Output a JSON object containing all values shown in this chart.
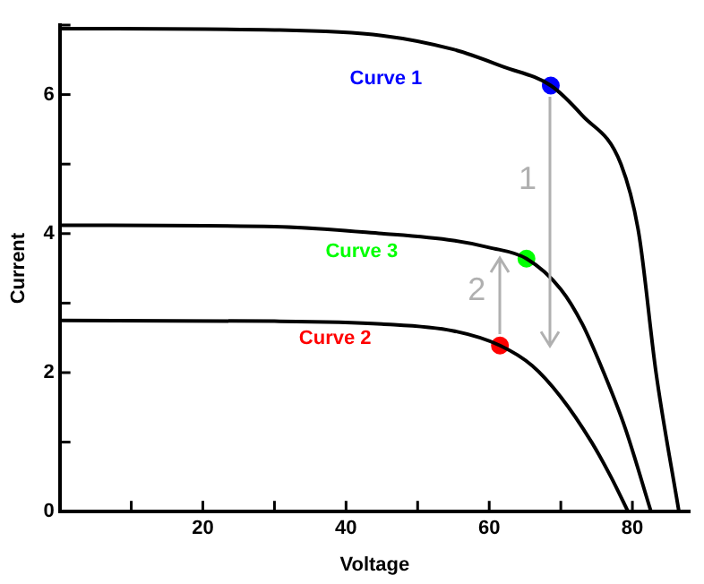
{
  "chart_data": {
    "type": "line",
    "xlabel": "Voltage",
    "ylabel": "Current",
    "xlim": [
      0,
      88
    ],
    "ylim": [
      0,
      7
    ],
    "xticks": [
      {
        "value": 0,
        "label": null
      },
      {
        "value": 10,
        "label": null
      },
      20,
      {
        "value": 30,
        "label": null
      },
      40,
      {
        "value": 50,
        "label": null
      },
      60,
      {
        "value": 70,
        "label": null
      },
      80
    ],
    "yticks": [
      0,
      {
        "value": 1,
        "label": null
      },
      2,
      {
        "value": 3,
        "label": null
      },
      4,
      {
        "value": 5,
        "label": null
      },
      6,
      {
        "value": 7,
        "label": null
      }
    ],
    "marker": "none",
    "line_style": "solid",
    "legend": false,
    "series": [
      {
        "color": "#000000",
        "x": [
          0,
          30,
          45,
          55,
          62,
          68.6,
          73,
          78.4,
          80.9,
          83.3,
          86.5
        ],
        "values": [
          6.95,
          6.93,
          6.85,
          6.65,
          6.4,
          6.13,
          5.7,
          5,
          4,
          2,
          0
        ]
      },
      {
        "color": "#000000",
        "x": [
          0,
          30,
          45,
          55,
          60,
          65.2,
          70,
          73,
          76,
          79,
          82.6
        ],
        "values": [
          4.12,
          4.1,
          4.0,
          3.9,
          3.8,
          3.64,
          3.2,
          2.7,
          2,
          1.2,
          0
        ]
      },
      {
        "color": "#000000",
        "x": [
          0,
          30,
          45,
          55,
          61.5,
          66,
          70,
          74.3,
          77,
          79.4
        ],
        "values": [
          2.75,
          2.74,
          2.7,
          2.6,
          2.39,
          2.1,
          1.65,
          1,
          0.5,
          0
        ]
      },
      {
        "type": "scatter",
        "name": "Curve 1",
        "color": "#0000ff",
        "marker": "circle",
        "x": [
          68.6
        ],
        "values": [
          6.13
        ]
      },
      {
        "type": "scatter",
        "name": "Curve 2",
        "color": "#ff0000",
        "marker": "circle",
        "x": [
          61.5
        ],
        "values": [
          2.39
        ]
      },
      {
        "type": "scatter",
        "name": "Curve 3",
        "color": "#00ff00",
        "marker": "circle",
        "x": [
          65.2
        ],
        "values": [
          3.64
        ]
      }
    ],
    "annotations": [
      "1",
      "2"
    ]
  }
}
